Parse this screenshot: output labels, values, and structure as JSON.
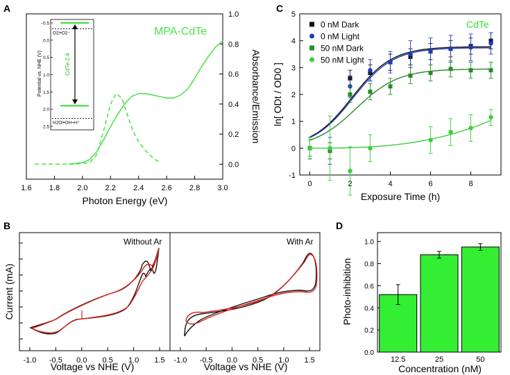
{
  "panel_labels": [
    "A",
    "B",
    "C",
    "D"
  ],
  "colors": {
    "green_absorbance": "#4ee34e",
    "green_light": "#3ccd3c",
    "green_dark": "#2a8a2a",
    "blue": "#1f3bbd",
    "black": "#111111",
    "red": "#e0201b",
    "bar_fill": "#33ee33"
  },
  "chart_data": [
    {
      "id": "A",
      "type": "line",
      "title": "MPA-CdTe",
      "xlabel": "Photon Energy (eV)",
      "ylabel": "Absorbance/Emission",
      "xlim": [
        1.6,
        3.0
      ],
      "ylim": [
        -0.1,
        1.0
      ],
      "x_ticks": [
        "1.6",
        "1.8",
        "2.0",
        "2.2",
        "2.4",
        "2.6",
        "2.8",
        "3.0"
      ],
      "y_ticks": [
        "0.0",
        "0.2",
        "0.4",
        "0.6",
        "0.8",
        "1.0"
      ],
      "series": [
        {
          "name": "Absorbance",
          "style": "solid",
          "x": [
            1.9,
            2.0,
            2.05,
            2.1,
            2.15,
            2.2,
            2.25,
            2.3,
            2.35,
            2.4,
            2.45,
            2.5,
            2.55,
            2.6,
            2.65,
            2.7,
            2.75,
            2.8,
            2.85,
            2.9,
            2.95,
            3.0
          ],
          "y": [
            0.0,
            0.01,
            0.03,
            0.08,
            0.16,
            0.25,
            0.33,
            0.4,
            0.45,
            0.47,
            0.47,
            0.46,
            0.45,
            0.44,
            0.44,
            0.46,
            0.5,
            0.57,
            0.65,
            0.72,
            0.78,
            0.82
          ]
        },
        {
          "name": "Emission",
          "style": "dashed",
          "x": [
            1.66,
            1.8,
            1.95,
            2.05,
            2.1,
            2.15,
            2.2,
            2.24,
            2.28,
            2.32,
            2.36,
            2.4,
            2.44,
            2.48,
            2.52,
            2.56
          ],
          "y": [
            0.0,
            0.0,
            0.0,
            0.01,
            0.06,
            0.22,
            0.4,
            0.47,
            0.44,
            0.33,
            0.22,
            0.15,
            0.1,
            0.06,
            0.03,
            0.01
          ]
        }
      ],
      "inset": {
        "ylabel": "Potential vs. NHE (V)",
        "ylim": [
          -0.5,
          2.5
        ],
        "y_ticks": [
          "-0.5",
          "0.0",
          "0.5",
          "1.0",
          "1.5",
          "2.0",
          "2.5"
        ],
        "conduction_band": -0.5,
        "valence_band": 1.9,
        "o2_label": "O2/•O2⁻",
        "o2_level": -0.33,
        "h2o_label": "H2O/•OH+H⁺",
        "h2o_level": 2.27,
        "band_gap_label": "CdTe-2.4"
      }
    },
    {
      "id": "C",
      "type": "scatter",
      "title": "CdTe",
      "xlabel": "Exposure Time (h)",
      "ylabel": "ln[ ODt / OD0 ]",
      "xlim": [
        -0.5,
        9.5
      ],
      "ylim": [
        -1,
        5
      ],
      "x_ticks": [
        "0",
        "2",
        "4",
        "6",
        "8"
      ],
      "y_ticks": [
        "-1",
        "0",
        "1",
        "2",
        "3",
        "4",
        "5"
      ],
      "series": [
        {
          "name": "0 nM Dark",
          "marker": "square",
          "color": "#111111",
          "x": [
            0,
            1,
            2,
            3,
            4,
            5,
            6,
            7,
            8,
            9
          ],
          "y": [
            0.0,
            -0.1,
            2.6,
            2.8,
            3.2,
            3.4,
            3.6,
            3.7,
            3.8,
            4.0
          ],
          "err": [
            0.4,
            0.3,
            0.3,
            0.3,
            0.3,
            0.3,
            0.3,
            0.3,
            0.3,
            0.3
          ]
        },
        {
          "name": "0 nM Light",
          "marker": "circle",
          "color": "#1f3bbd",
          "x": [
            0,
            1,
            2,
            3,
            4,
            5,
            6,
            7,
            8,
            9
          ],
          "y": [
            0.0,
            -0.1,
            2.3,
            2.9,
            3.2,
            3.5,
            3.6,
            3.7,
            3.75,
            3.9
          ],
          "err": [
            0.4,
            0.5,
            0.4,
            0.4,
            0.4,
            0.5,
            0.5,
            0.5,
            0.5,
            0.4
          ]
        },
        {
          "name": "50 nM Dark",
          "marker": "square",
          "color": "#2a8a2a",
          "x": [
            0,
            1,
            2,
            3,
            4,
            5,
            6,
            7,
            8,
            9
          ],
          "y": [
            0.0,
            -0.1,
            2.0,
            2.1,
            2.3,
            2.7,
            2.8,
            2.95,
            2.9,
            2.9
          ],
          "err": [
            0.3,
            0.3,
            0.3,
            0.3,
            0.3,
            0.3,
            0.3,
            0.3,
            0.3,
            0.3
          ]
        },
        {
          "name": "50 nM Light",
          "marker": "circle",
          "color": "#3ccd3c",
          "x": [
            0,
            1,
            2,
            3,
            6,
            7,
            8,
            9
          ],
          "y": [
            0.0,
            0.0,
            -0.85,
            0.0,
            0.3,
            0.6,
            0.75,
            1.15
          ],
          "err": [
            0.4,
            1.2,
            0.9,
            0.5,
            0.5,
            0.5,
            0.5,
            0.3
          ]
        }
      ],
      "fits": [
        {
          "name": "0 nM Dark",
          "color": "#111111",
          "A": 3.78,
          "k": 1.0,
          "x0": 2.1
        },
        {
          "name": "0 nM Light",
          "color": "#1f3bbd",
          "A": 3.74,
          "k": 1.0,
          "x0": 2.15
        },
        {
          "name": "50 nM Dark",
          "color": "#2a8a2a",
          "A": 2.95,
          "k": 0.95,
          "x0": 2.3
        },
        {
          "name": "50 nM Light",
          "color": "#3ccd3c",
          "type": "power",
          "coef": 0.0022,
          "exp": 2.8
        }
      ]
    },
    {
      "id": "B1",
      "type": "line",
      "title": "Without Ar",
      "xlabel": "Voltage vs NHE (V)",
      "ylabel": "Current (mA)",
      "xlim": [
        -1.2,
        1.7
      ],
      "x_ticks": [
        "-1.0",
        "-0.5",
        "0.0",
        "0.5",
        "1.0",
        "1.5"
      ]
    },
    {
      "id": "B2",
      "type": "line",
      "title": "With Ar",
      "xlabel": "Voltage vs NHE (V)",
      "xlim": [
        -1.2,
        1.7
      ],
      "x_ticks": [
        "-1.0",
        "-0.5",
        "0.0",
        "0.5",
        "1.0",
        "1.5"
      ]
    },
    {
      "id": "D",
      "type": "bar",
      "xlabel": "Concentration (nM)",
      "ylabel": "Photo-inhibition",
      "ylim": [
        0,
        1.08
      ],
      "categories": [
        "12.5",
        "25",
        "50"
      ],
      "values": [
        0.52,
        0.88,
        0.95
      ],
      "err": [
        0.09,
        0.03,
        0.03
      ],
      "y_ticks": [
        "0.0",
        "0.2",
        "0.4",
        "0.6",
        "0.8",
        "1.0"
      ]
    }
  ]
}
